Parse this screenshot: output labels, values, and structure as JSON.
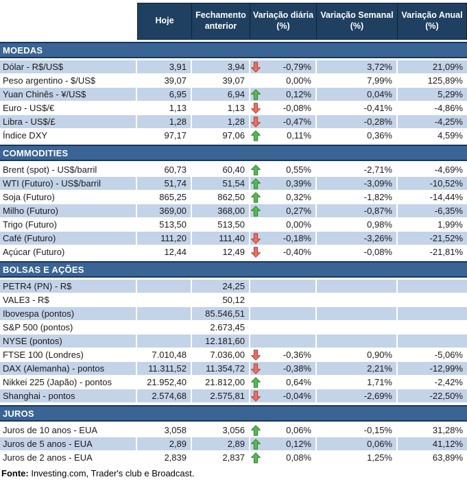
{
  "header": {
    "columns": [
      "Hoje",
      "Fechamento anterior",
      "Variação diária (%)",
      "Variação Semanal (%)",
      "Variação Anual (%)"
    ]
  },
  "sections": [
    {
      "title": "MOEDAS",
      "first_shade": "blue",
      "rows": [
        {
          "label": "Dólar - R$/US$",
          "hoje": "3,91",
          "fechamento": "3,94",
          "arrow": "down",
          "diaria": "-0,79%",
          "semanal": "3,72%",
          "anual": "21,09%"
        },
        {
          "label": "Peso argentino - $/US$",
          "hoje": "39,07",
          "fechamento": "39,07",
          "arrow": "none",
          "diaria": "0,00%",
          "semanal": "7,99%",
          "anual": "125,89%"
        },
        {
          "label": "Yuan Chinês - ¥/US$",
          "hoje": "6,95",
          "fechamento": "6,94",
          "arrow": "up",
          "diaria": "0,12%",
          "semanal": "0,04%",
          "anual": "5,29%"
        },
        {
          "label": "Euro - US$/€",
          "hoje": "1,13",
          "fechamento": "1,13",
          "arrow": "down",
          "diaria": "-0,08%",
          "semanal": "-0,41%",
          "anual": "-4,86%"
        },
        {
          "label": "Libra - US$/£",
          "hoje": "1,28",
          "fechamento": "1,28",
          "arrow": "down",
          "diaria": "-0,47%",
          "semanal": "-0,28%",
          "anual": "-4,25%"
        },
        {
          "label": "Índice DXY",
          "hoje": "97,17",
          "fechamento": "97,06",
          "arrow": "up",
          "diaria": "0,11%",
          "semanal": "0,36%",
          "anual": "4,59%"
        }
      ]
    },
    {
      "title": "COMMODITIES",
      "first_shade": "white",
      "rows": [
        {
          "label": "Brent (spot) - US$/barril",
          "hoje": "60,73",
          "fechamento": "60,40",
          "arrow": "up",
          "diaria": "0,55%",
          "semanal": "-2,71%",
          "anual": "-4,69%"
        },
        {
          "label": "WTI (Futuro) - US$/barril",
          "hoje": "51,74",
          "fechamento": "51,54",
          "arrow": "up",
          "diaria": "0,39%",
          "semanal": "-3,09%",
          "anual": "-10,52%"
        },
        {
          "label": "Soja (Futuro)",
          "hoje": "865,25",
          "fechamento": "862,50",
          "arrow": "up",
          "diaria": "0,32%",
          "semanal": "-1,82%",
          "anual": "-14,44%"
        },
        {
          "label": "Milho (Futuro)",
          "hoje": "369,00",
          "fechamento": "368,00",
          "arrow": "up",
          "diaria": "0,27%",
          "semanal": "-0,87%",
          "anual": "-6,35%"
        },
        {
          "label": "Trigo (Futuro)",
          "hoje": "513,50",
          "fechamento": "513,50",
          "arrow": "none",
          "diaria": "0,00%",
          "semanal": "0,98%",
          "anual": "1,99%"
        },
        {
          "label": "Café (Futuro)",
          "hoje": "111,20",
          "fechamento": "111,40",
          "arrow": "down",
          "diaria": "-0,18%",
          "semanal": "-3,26%",
          "anual": "-21,52%"
        },
        {
          "label": "Açúcar (Futuro)",
          "hoje": "12,44",
          "fechamento": "12,49",
          "arrow": "down",
          "diaria": "-0,40%",
          "semanal": "-0,08%",
          "anual": "-21,81%"
        }
      ]
    },
    {
      "title": "BOLSAS E AÇÕES",
      "first_shade": "blue",
      "rows": [
        {
          "label": "PETR4 (PN) - R$",
          "hoje": "",
          "fechamento": "24,25",
          "arrow": "none",
          "diaria": "",
          "semanal": "",
          "anual": ""
        },
        {
          "label": "VALE3 - R$",
          "hoje": "",
          "fechamento": "50,12",
          "arrow": "none",
          "diaria": "",
          "semanal": "",
          "anual": ""
        },
        {
          "label": "Ibovespa (pontos)",
          "hoje": "",
          "fechamento": "85.546,51",
          "arrow": "none",
          "diaria": "",
          "semanal": "",
          "anual": ""
        },
        {
          "label": "S&P 500 (pontos)",
          "hoje": "",
          "fechamento": "2.673,45",
          "arrow": "none",
          "diaria": "",
          "semanal": "",
          "anual": ""
        },
        {
          "label": "NYSE (pontos)",
          "hoje": "",
          "fechamento": "12.181,60",
          "arrow": "none",
          "diaria": "",
          "semanal": "",
          "anual": ""
        },
        {
          "label": "FTSE 100 (Londres)",
          "hoje": "7.010,48",
          "fechamento": "7.036,00",
          "arrow": "down",
          "diaria": "-0,36%",
          "semanal": "0,90%",
          "anual": "-5,06%"
        },
        {
          "label": "DAX (Alemanha) - pontos",
          "hoje": "11.311,52",
          "fechamento": "11.354,72",
          "arrow": "down",
          "diaria": "-0,38%",
          "semanal": "2,21%",
          "anual": "-12,99%"
        },
        {
          "label": "Nikkei 225 (Japão) - pontos",
          "hoje": "21.952,40",
          "fechamento": "21.812,00",
          "arrow": "up",
          "diaria": "0,64%",
          "semanal": "1,71%",
          "anual": "-2,42%"
        },
        {
          "label": "Shanghai - pontos",
          "hoje": "2.574,68",
          "fechamento": "2.575,81",
          "arrow": "down",
          "diaria": "-0,04%",
          "semanal": "-2,69%",
          "anual": "-22,50%"
        }
      ]
    },
    {
      "title": "JUROS",
      "first_shade": "white",
      "rows": [
        {
          "label": "Juros de 10 anos - EUA",
          "hoje": "3,058",
          "fechamento": "3,056",
          "arrow": "up",
          "diaria": "0,06%",
          "semanal": "-0,15%",
          "anual": "31,28%"
        },
        {
          "label": "Juros de 5 anos - EUA",
          "hoje": "2,89",
          "fechamento": "2,89",
          "arrow": "up",
          "diaria": "0,12%",
          "semanal": "0,06%",
          "anual": "41,12%"
        },
        {
          "label": "Juros de 2 anos - EUA",
          "hoje": "2,839",
          "fechamento": "2,837",
          "arrow": "up",
          "diaria": "0,08%",
          "semanal": "1,25%",
          "anual": "63,89%"
        }
      ]
    }
  ],
  "footer": {
    "label_bold": "Fonte:",
    "text": " Investing.com, Trader's club e Broadcast."
  },
  "icons": {
    "up": "up-arrow-icon",
    "down": "down-arrow-icon"
  },
  "colors": {
    "header_bg": "#1F4060",
    "band_bg": "#3A6494",
    "band_border": "#17365D",
    "row_blue": "#C3D3E8",
    "arrow_up_fill": "#52BE4A",
    "arrow_up_stroke": "#2E7D32",
    "arrow_down_fill": "#E97065",
    "arrow_down_stroke": "#B43B32"
  }
}
